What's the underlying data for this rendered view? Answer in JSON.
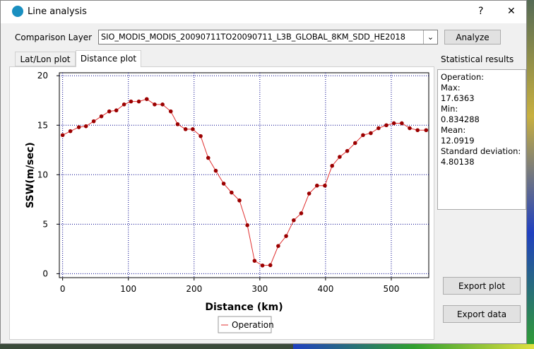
{
  "window": {
    "title": "Line analysis",
    "help": "?",
    "close": "✕"
  },
  "toolbar": {
    "label": "Comparison Layer",
    "layer": "SIO_MODIS_MODIS_20090711TO20090711_L3B_GLOBAL_8KM_SDD_HE2018",
    "button": "Analyze"
  },
  "tabs": [
    "Lat/Lon plot",
    "Distance plot"
  ],
  "stats": {
    "title": "Statistical results",
    "lines": [
      "Operation:",
      "Max:",
      "17.6363",
      "Min:",
      "0.834288",
      "Mean:",
      "12.0919",
      "Standard deviation:",
      "4.80138"
    ]
  },
  "buttons": [
    "Export plot",
    "Export data"
  ],
  "chart_data": {
    "type": "line",
    "xlabel": "Distance (km)",
    "ylabel": "SSW(m/sec)",
    "x": [
      0,
      11.8,
      24.7,
      35.5,
      47.3,
      59,
      71,
      81.7,
      93.5,
      104,
      116,
      128,
      140,
      152,
      164.5,
      175,
      187,
      198,
      210,
      221.5,
      233,
      245,
      257,
      269,
      281,
      292,
      304,
      316,
      328,
      340,
      351.6,
      363,
      375,
      387,
      399,
      410,
      421.5,
      433,
      445,
      457,
      468.8,
      480.6,
      492.5,
      504,
      516,
      528,
      540,
      553
    ],
    "series": [
      {
        "name": "Operation",
        "color": "#9b0000",
        "line_color": "#e03030",
        "values": [
          14.0,
          14.4,
          14.8,
          14.9,
          15.4,
          15.9,
          16.4,
          16.5,
          17.1,
          17.4,
          17.4,
          17.64,
          17.1,
          17.1,
          16.4,
          15.1,
          14.6,
          14.6,
          13.9,
          11.7,
          10.4,
          9.1,
          8.2,
          7.4,
          4.9,
          1.3,
          0.83,
          0.86,
          2.8,
          3.8,
          5.4,
          6.1,
          8.1,
          8.9,
          8.9,
          10.9,
          11.8,
          12.4,
          13.2,
          14.0,
          14.2,
          14.7,
          15.0,
          15.2,
          15.2,
          14.7,
          14.5,
          14.5
        ]
      }
    ],
    "xlim": [
      -5,
      557
    ],
    "ylim": [
      -0.4,
      20.3
    ],
    "xticks": [
      0,
      100,
      200,
      300,
      400,
      500
    ],
    "yticks": [
      0,
      5,
      10,
      15,
      20
    ],
    "grid": true,
    "legend": "bottom"
  }
}
